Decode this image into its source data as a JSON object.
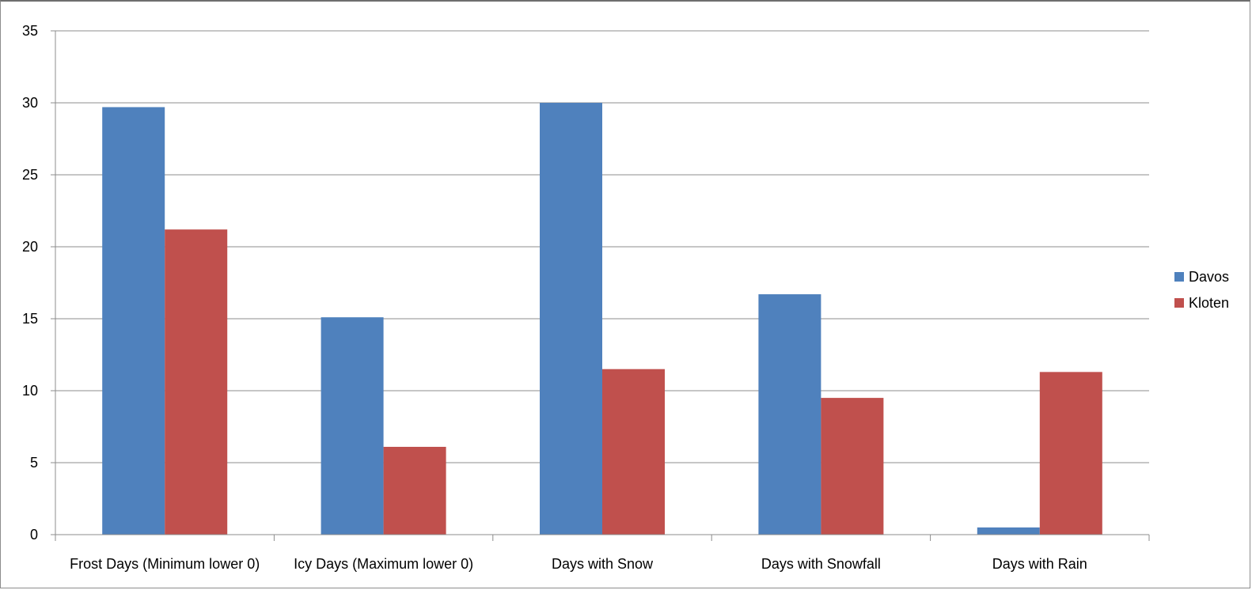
{
  "chart_data": {
    "type": "bar",
    "title": "",
    "xlabel": "",
    "ylabel": "",
    "categories": [
      "Frost Days (Minimum lower 0)",
      "Icy Days (Maximum lower 0)",
      "Days with Snow",
      "Days with Snowfall",
      "Days with Rain"
    ],
    "series": [
      {
        "name": "Davos",
        "color": "#4f81bd",
        "values": [
          29.7,
          15.1,
          30.0,
          16.7,
          0.5
        ]
      },
      {
        "name": "Kloten",
        "color": "#c0504d",
        "values": [
          21.2,
          6.1,
          11.5,
          9.5,
          11.3
        ]
      }
    ],
    "ylim": [
      0,
      35
    ],
    "yticks": [
      "0",
      "5",
      "10",
      "15",
      "20",
      "25",
      "30",
      "35"
    ],
    "grid": true,
    "legend_position": "right"
  }
}
